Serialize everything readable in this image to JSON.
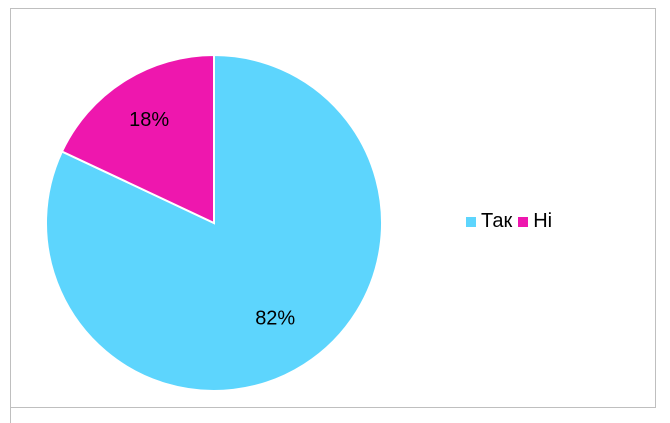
{
  "chart_data": {
    "type": "pie",
    "categories": [
      "Так",
      "Ні"
    ],
    "values": [
      82,
      18
    ],
    "labels": [
      "82%",
      "18%"
    ],
    "colors": [
      "#5dd5fd",
      "#ee17ae"
    ],
    "legend_position": "right",
    "title": ""
  },
  "legend": {
    "items": [
      {
        "label": "Так",
        "color": "#5dd5fd"
      },
      {
        "label": "Ні",
        "color": "#ee17ae"
      }
    ]
  }
}
